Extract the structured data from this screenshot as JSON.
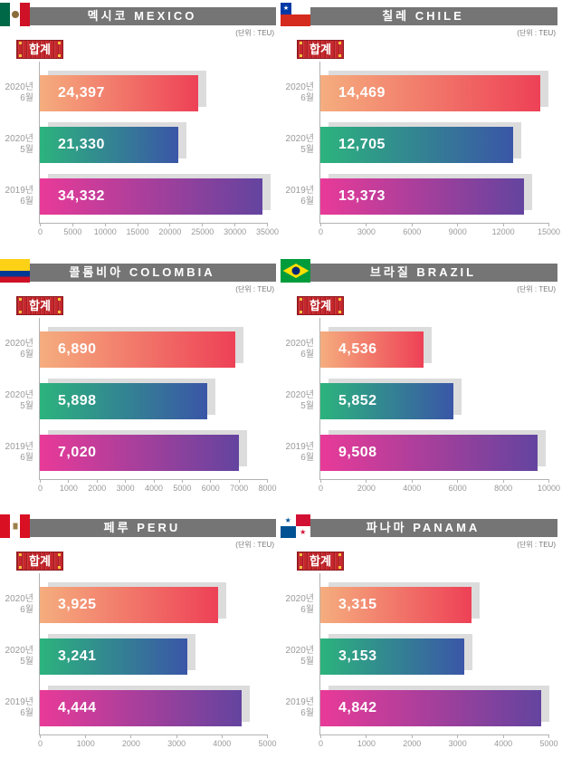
{
  "page": {
    "background": "#ffffff",
    "grid": "2 columns x 3 rows of bar charts"
  },
  "colors": {
    "header_bar": "#757575",
    "badge_red": "#c4272c",
    "badge_corner_yellow": "#f5c33b",
    "bar_shadow": "#dcdcdc",
    "axis_line": "#b3b3b3",
    "tick_text": "#999999",
    "category_text": "#9a9a9a",
    "value_text": "#ffffff",
    "gradient_warm": [
      "#f5ad7e",
      "#ee4156"
    ],
    "gradient_cool": [
      "#2cb37d",
      "#3a56a7"
    ],
    "gradient_purple": [
      "#e93a98",
      "#63449f"
    ]
  },
  "chart_data": [
    {
      "type": "bar",
      "orientation": "horizontal",
      "country": "Mexico",
      "title": "멕시코 MEXICO",
      "unit_label": "(단위 : TEU)",
      "total_label": "합계",
      "categories": [
        "2020년 6월",
        "2020년 5월",
        "2019년 6월"
      ],
      "category_lines": [
        [
          "2020년",
          "6월"
        ],
        [
          "2020년",
          "5월"
        ],
        [
          "2019년",
          "6월"
        ]
      ],
      "values": [
        24397,
        21330,
        34332
      ],
      "value_labels": [
        "24,397",
        "21,330",
        "34,332"
      ],
      "xlim": [
        0,
        35000
      ],
      "ticks": [
        0,
        5000,
        10000,
        15000,
        20000,
        25000,
        30000,
        35000
      ],
      "grid": false,
      "legend": null
    },
    {
      "type": "bar",
      "orientation": "horizontal",
      "country": "Chile",
      "title": "칠레 CHILE",
      "unit_label": "(단위 : TEU)",
      "total_label": "합계",
      "categories": [
        "2020년 6월",
        "2020년 5월",
        "2019년 6월"
      ],
      "category_lines": [
        [
          "2020년",
          "6월"
        ],
        [
          "2020년",
          "5월"
        ],
        [
          "2019년",
          "6월"
        ]
      ],
      "values": [
        14469,
        12705,
        13373
      ],
      "value_labels": [
        "14,469",
        "12,705",
        "13,373"
      ],
      "xlim": [
        0,
        15000
      ],
      "ticks": [
        0,
        3000,
        6000,
        9000,
        12000,
        15000
      ],
      "grid": false,
      "legend": null
    },
    {
      "type": "bar",
      "orientation": "horizontal",
      "country": "Colombia",
      "title": "콜롬비아 COLOMBIA",
      "unit_label": "(단위 : TEU)",
      "total_label": "합계",
      "categories": [
        "2020년 6월",
        "2020년 5월",
        "2019년 6월"
      ],
      "category_lines": [
        [
          "2020년",
          "6월"
        ],
        [
          "2020년",
          "5월"
        ],
        [
          "2019년",
          "6월"
        ]
      ],
      "values": [
        6890,
        5898,
        7020
      ],
      "value_labels": [
        "6,890",
        "5,898",
        "7,020"
      ],
      "xlim": [
        0,
        8000
      ],
      "ticks": [
        0,
        1000,
        2000,
        3000,
        4000,
        5000,
        6000,
        7000,
        8000
      ],
      "grid": false,
      "legend": null
    },
    {
      "type": "bar",
      "orientation": "horizontal",
      "country": "Brazil",
      "title": "브라질 BRAZIL",
      "unit_label": "(단위 : TEU)",
      "total_label": "합계",
      "categories": [
        "2020년 6월",
        "2020년 5월",
        "2019년 6월"
      ],
      "category_lines": [
        [
          "2020년",
          "6월"
        ],
        [
          "2020년",
          "5월"
        ],
        [
          "2019년",
          "6월"
        ]
      ],
      "values": [
        4536,
        5852,
        9508
      ],
      "value_labels": [
        "4,536",
        "5,852",
        "9,508"
      ],
      "xlim": [
        0,
        10000
      ],
      "ticks": [
        0,
        2000,
        4000,
        6000,
        8000,
        10000
      ],
      "grid": false,
      "legend": null
    },
    {
      "type": "bar",
      "orientation": "horizontal",
      "country": "Peru",
      "title": "페루 PERU",
      "unit_label": "(단위 : TEU)",
      "total_label": "합계",
      "categories": [
        "2020년 6월",
        "2020년 5월",
        "2019년 6월"
      ],
      "category_lines": [
        [
          "2020년",
          "6월"
        ],
        [
          "2020년",
          "5월"
        ],
        [
          "2019년",
          "6월"
        ]
      ],
      "values": [
        3925,
        3241,
        4444
      ],
      "value_labels": [
        "3,925",
        "3,241",
        "4,444"
      ],
      "xlim": [
        0,
        5000
      ],
      "ticks": [
        0,
        1000,
        2000,
        3000,
        4000,
        5000
      ],
      "grid": false,
      "legend": null
    },
    {
      "type": "bar",
      "orientation": "horizontal",
      "country": "Panama",
      "title": "파나마 PANAMA",
      "unit_label": "(단위 : TEU)",
      "total_label": "합계",
      "categories": [
        "2020년 6월",
        "2020년 5월",
        "2019년 6월"
      ],
      "category_lines": [
        [
          "2020년",
          "6월"
        ],
        [
          "2020년",
          "5월"
        ],
        [
          "2019년",
          "6월"
        ]
      ],
      "values": [
        3315,
        3153,
        4842
      ],
      "value_labels": [
        "3,315",
        "3,153",
        "4,842"
      ],
      "xlim": [
        0,
        5000
      ],
      "ticks": [
        0,
        1000,
        2000,
        3000,
        4000,
        5000
      ],
      "grid": false,
      "legend": null
    }
  ]
}
